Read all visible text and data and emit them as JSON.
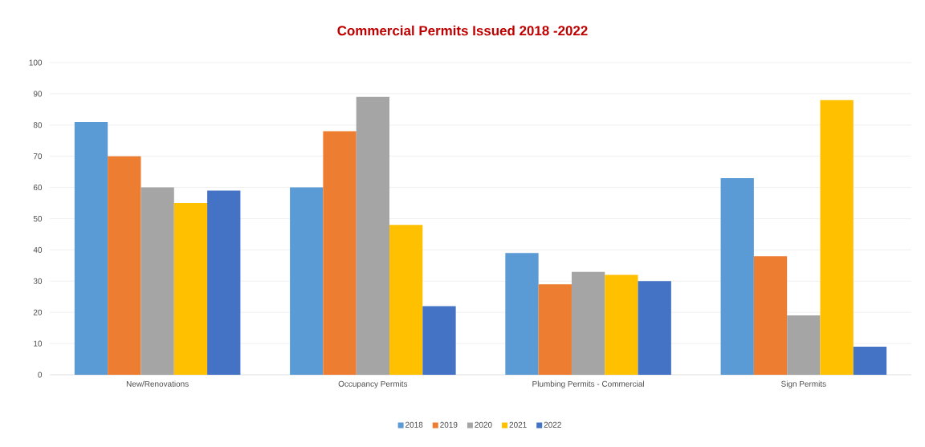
{
  "chart_data": {
    "type": "bar",
    "title": "Commercial Permits Issued 2018 -2022",
    "categories": [
      "New/Renovations",
      "Occupancy Permits",
      "Plumbing Permits - Commercial",
      "Sign Permits"
    ],
    "series": [
      {
        "name": "2018",
        "color": "#5b9bd5",
        "values": [
          81,
          60,
          39,
          63
        ]
      },
      {
        "name": "2019",
        "color": "#ed7d31",
        "values": [
          70,
          78,
          29,
          38
        ]
      },
      {
        "name": "2020",
        "color": "#a5a5a5",
        "values": [
          60,
          89,
          33,
          19
        ]
      },
      {
        "name": "2021",
        "color": "#ffc000",
        "values": [
          55,
          48,
          32,
          88
        ]
      },
      {
        "name": "2022",
        "color": "#4472c4",
        "values": [
          59,
          22,
          30,
          9
        ]
      }
    ],
    "ylim": [
      0,
      100
    ],
    "yticks": [
      0,
      10,
      20,
      30,
      40,
      50,
      60,
      70,
      80,
      90,
      100
    ],
    "grid": "y",
    "legend": "bottom"
  }
}
